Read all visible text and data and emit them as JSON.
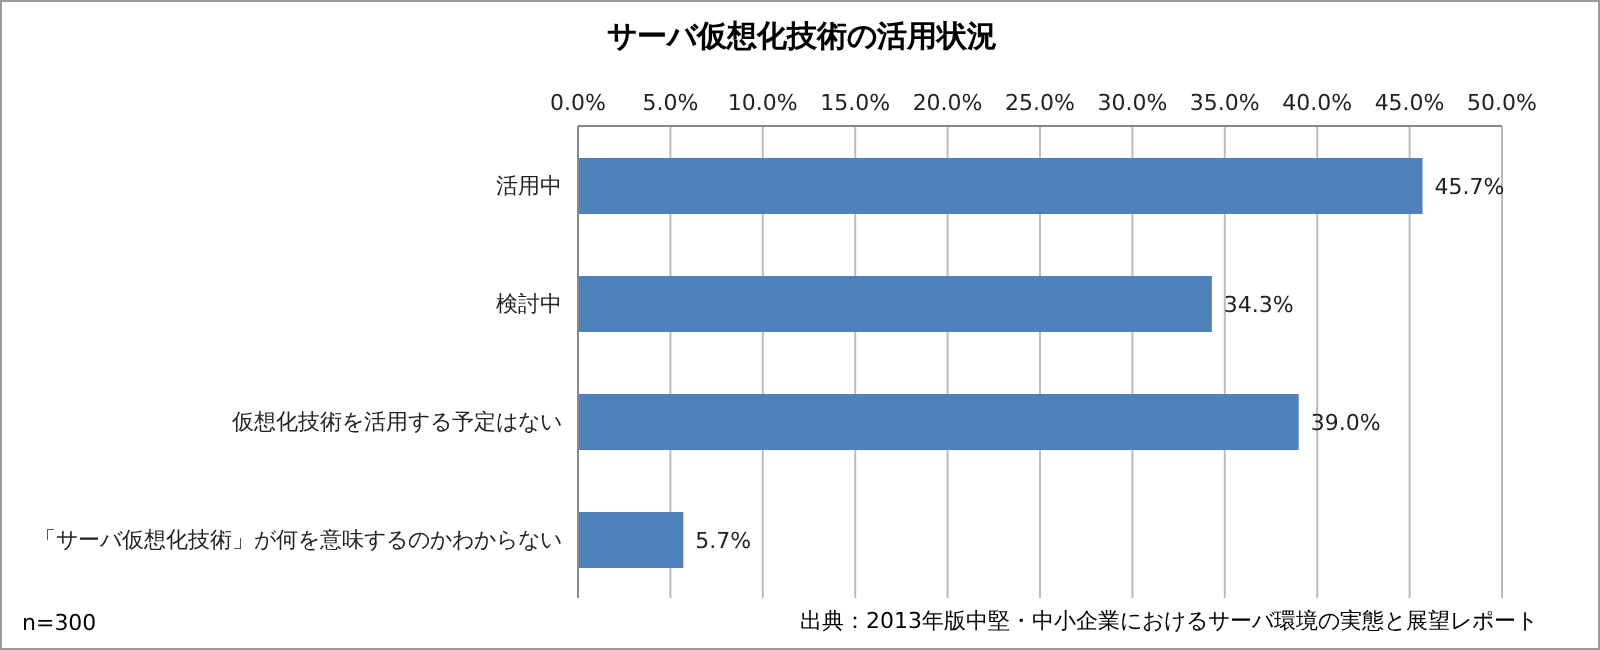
{
  "chart_data": {
    "type": "bar",
    "orientation": "horizontal",
    "title": "サーバ仮想化技術の活用状況",
    "categories": [
      "活用中",
      "検討中",
      "仮想化技術を活用する予定はない",
      "「サーバ仮想化技術」が何を意味するのかわからない"
    ],
    "values": [
      45.7,
      34.3,
      39.0,
      5.7
    ],
    "value_labels": [
      "45.7%",
      "34.3%",
      "39.0%",
      "5.7%"
    ],
    "color": "#4f81bd",
    "xlim": [
      0,
      50
    ],
    "xticks": [
      {
        "value": 0,
        "label": "0.0%"
      },
      {
        "value": 5,
        "label": "5.0%"
      },
      {
        "value": 10,
        "label": "10.0%"
      },
      {
        "value": 15,
        "label": "15.0%"
      },
      {
        "value": 20,
        "label": "20.0%"
      },
      {
        "value": 25,
        "label": "25.0%"
      },
      {
        "value": 30,
        "label": "30.0%"
      },
      {
        "value": 35,
        "label": "35.0%"
      },
      {
        "value": 40,
        "label": "40.0%"
      },
      {
        "value": 45,
        "label": "45.0%"
      },
      {
        "value": 50,
        "label": "50.0%"
      }
    ],
    "grid": "x",
    "annotations": [
      "n=300",
      "出典：2013年版中堅・中小企業におけるサーバ環境の実態と展望レポート"
    ]
  }
}
